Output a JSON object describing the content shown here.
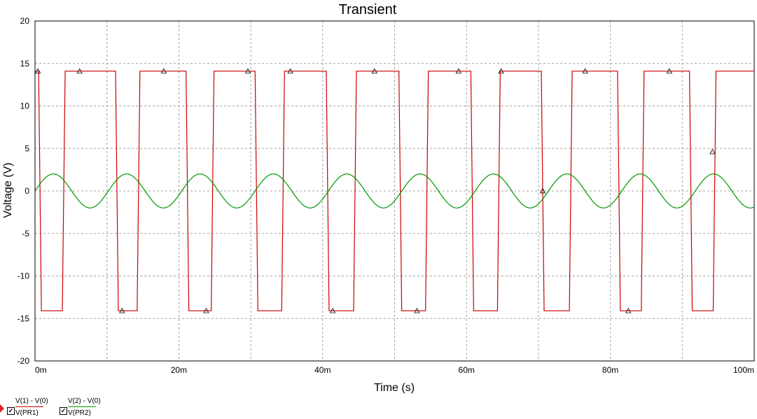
{
  "chart_data": {
    "type": "line",
    "title": "Transient",
    "xlabel": "Time (s)",
    "ylabel": "Voltage (V)",
    "xlim": [
      0,
      100
    ],
    "ylim": [
      -20,
      20
    ],
    "x_unit": "ms",
    "x_ticks": [
      0,
      10,
      20,
      30,
      40,
      50,
      60,
      70,
      80,
      90,
      100
    ],
    "x_tick_labels": [
      "0m",
      "20m",
      "40m",
      "60m",
      "80m",
      "100m"
    ],
    "x_tick_label_values": [
      0,
      20,
      40,
      60,
      80,
      100
    ],
    "y_ticks": [
      20,
      15,
      10,
      5,
      0,
      -5,
      -10,
      -15,
      -20
    ],
    "y_tick_labels": [
      "20",
      "15",
      "10",
      "5",
      "0",
      "-5",
      "-10",
      "-15",
      "-20"
    ],
    "grid": true,
    "series": [
      {
        "name": "V(1) - V(0)",
        "probe": "V(PR1)",
        "color": "#cc0000",
        "shape": "square-wave",
        "high": 14.1,
        "low": -14.1,
        "low_intervals": [
          [
            0.5,
            3.8
          ],
          [
            11.2,
            14.2
          ],
          [
            21.0,
            24.5
          ],
          [
            30.6,
            34.3
          ],
          [
            40.5,
            44.3
          ],
          [
            50.6,
            54.3
          ],
          [
            60.6,
            64.3
          ],
          [
            70.4,
            74.3
          ],
          [
            81.0,
            84.3
          ],
          [
            91.0,
            94.3
          ]
        ],
        "markers": [
          [
            0.4,
            14.1
          ],
          [
            6.2,
            14.1
          ],
          [
            17.9,
            14.1
          ],
          [
            29.6,
            14.1
          ],
          [
            35.5,
            14.1
          ],
          [
            47.2,
            14.1
          ],
          [
            58.9,
            14.1
          ],
          [
            64.8,
            14.1
          ],
          [
            76.5,
            14.1
          ],
          [
            88.2,
            14.1
          ],
          [
            12.1,
            -14.1
          ],
          [
            23.8,
            -14.1
          ],
          [
            41.4,
            -14.1
          ],
          [
            53.1,
            -14.1
          ],
          [
            82.5,
            -14.1
          ],
          [
            94.2,
            4.6
          ]
        ]
      },
      {
        "name": "V(2) - V(0)",
        "probe": "V(PR2)",
        "color": "#009900",
        "shape": "sine",
        "amplitude": 2,
        "period_ms": 10.2,
        "phase_ms": 0,
        "markers": [
          [
            70.6,
            0
          ]
        ]
      }
    ],
    "legend": "bottom-left"
  }
}
